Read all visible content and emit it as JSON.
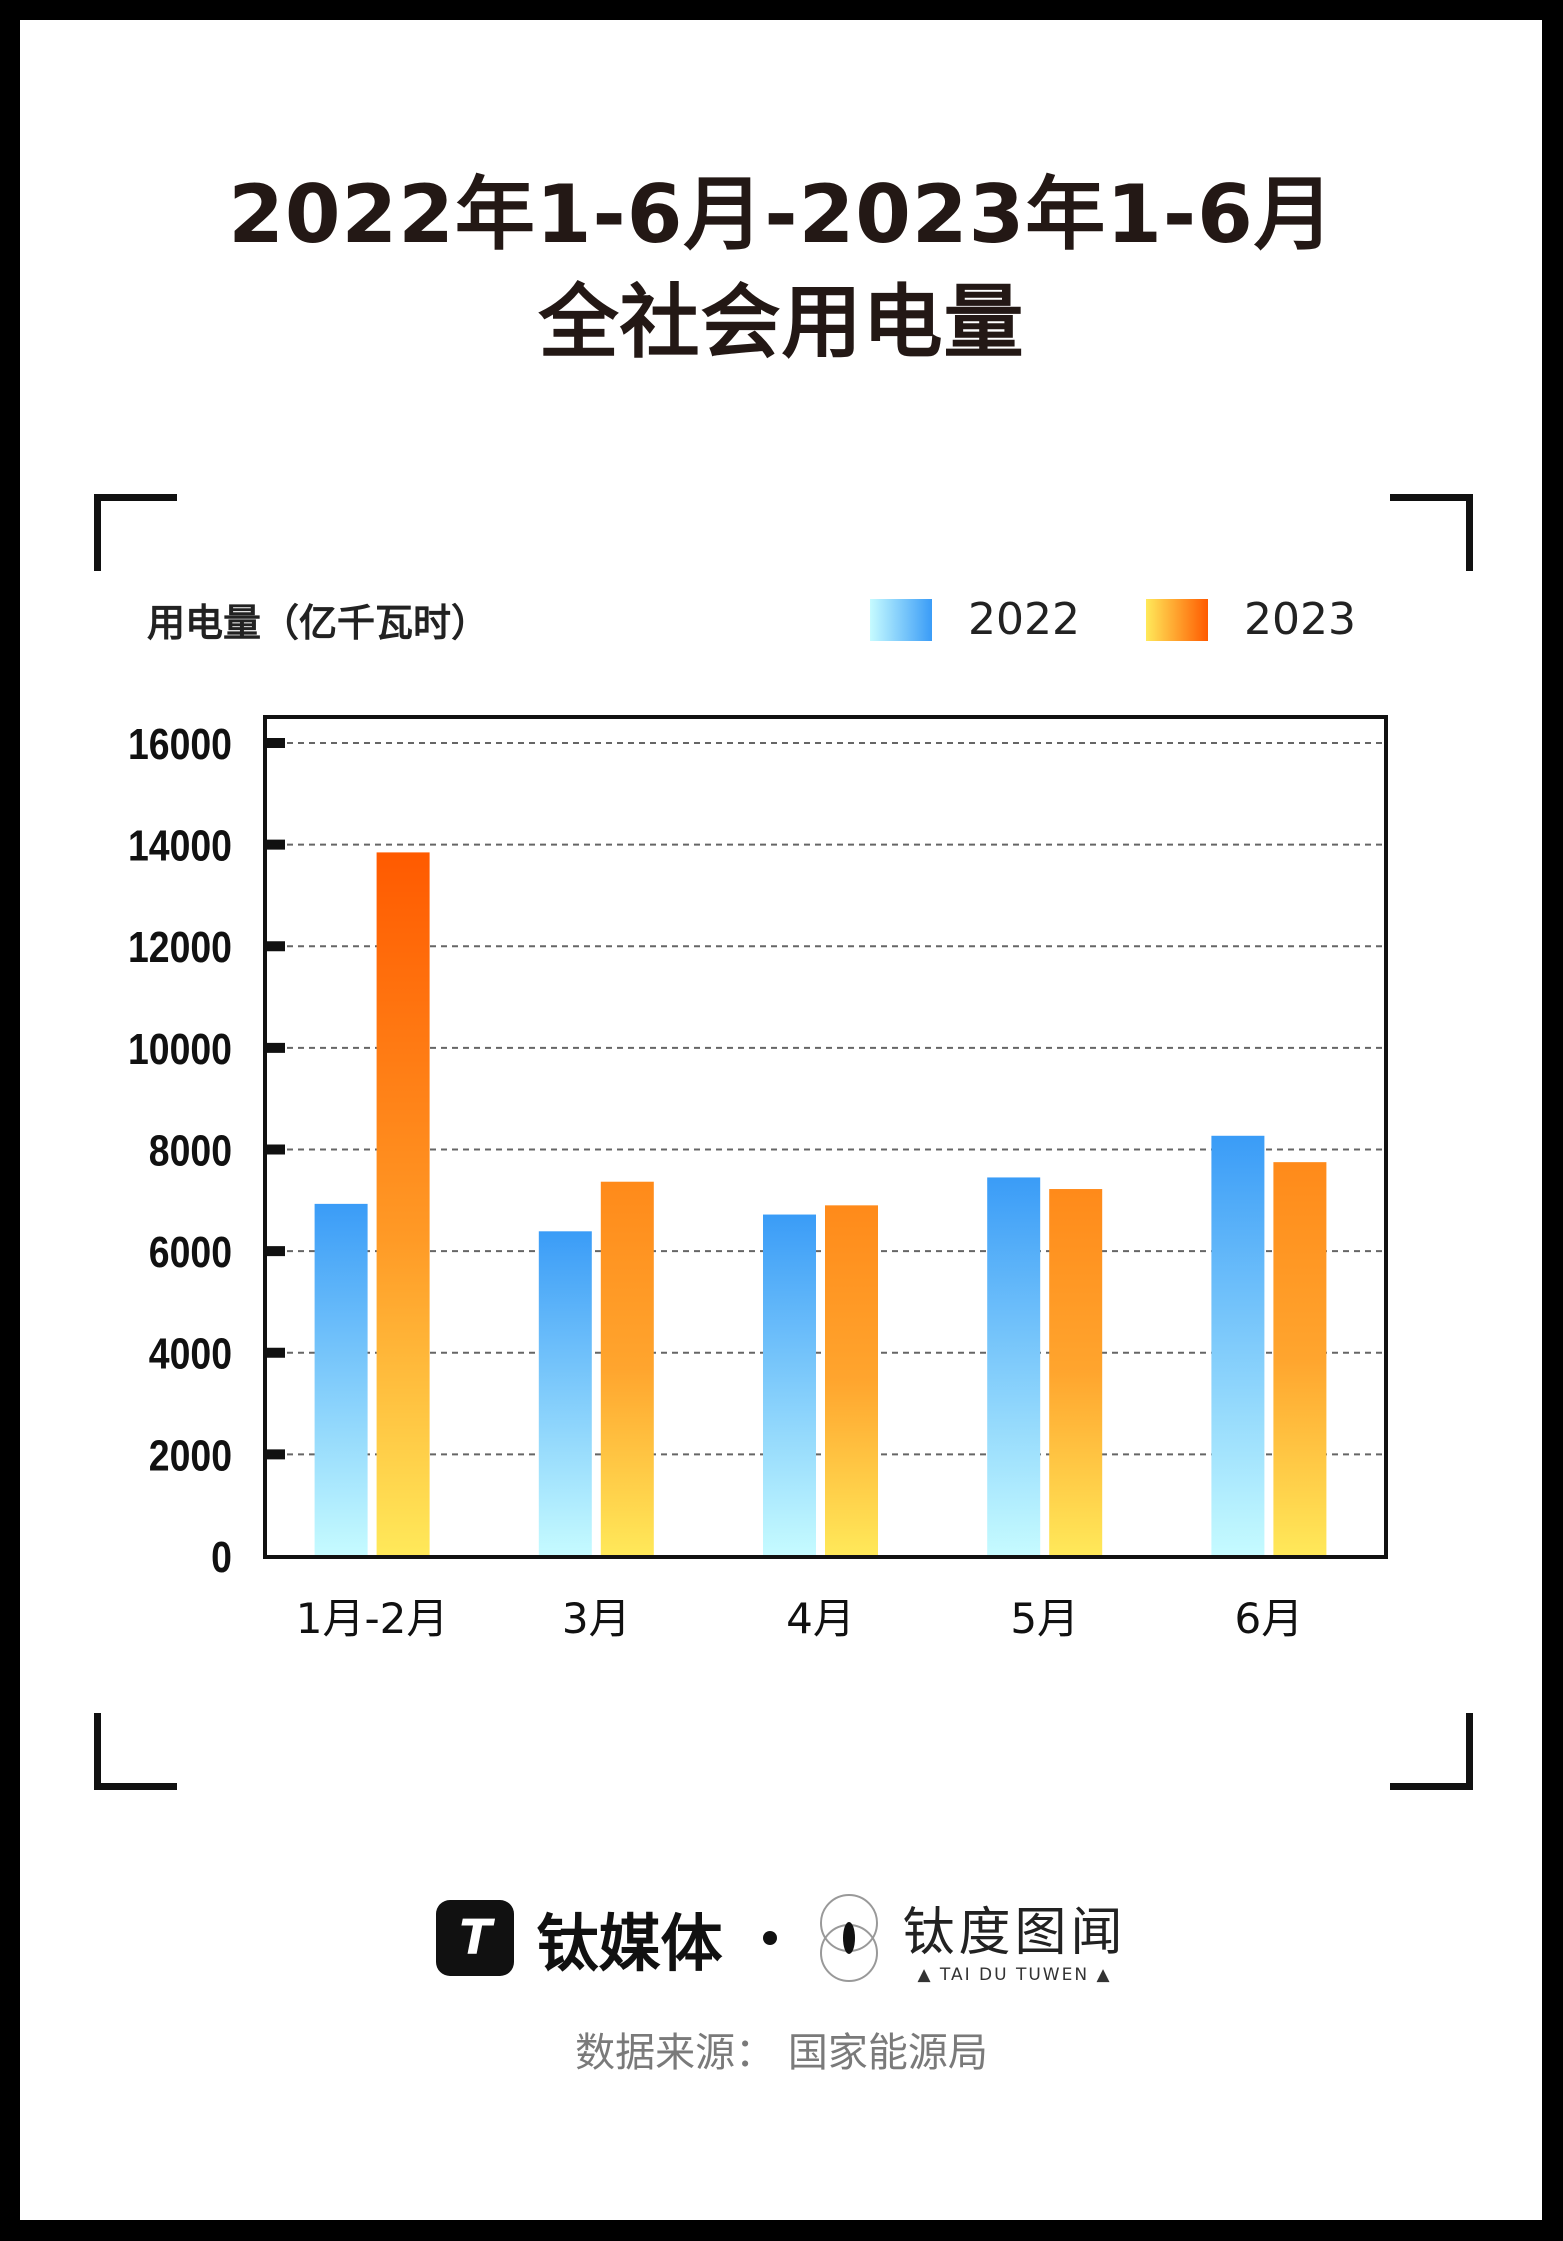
{
  "title_line1": "2022年1-6月-2023年1-6月",
  "title_line2": "全社会用电量",
  "footer": {
    "brand_logo_text": "T",
    "brand1": "钛媒体",
    "brand2_cn": "钛度图闻",
    "brand2_en": "▲ TAI DU TUWEN ▲",
    "source": "数据来源：  国家能源局"
  },
  "chart_data": {
    "type": "bar",
    "title": "2022年1-6月-2023年1-6月 全社会用电量",
    "ylabel": "用电量（亿千瓦时）",
    "xlabel": "",
    "categories": [
      "1月-2月",
      "3月",
      "4月",
      "5月",
      "6月"
    ],
    "series": [
      {
        "name": "2022",
        "values": [
          6930,
          6390,
          6720,
          7450,
          8270
        ],
        "color_top": "#3a9cf7",
        "color_bottom": "#c6fbff"
      },
      {
        "name": "2023",
        "values": [
          13847,
          7366,
          6901,
          7222,
          7751
        ],
        "color_top": "#ff5a00",
        "color_bottom": "#ffe95a"
      }
    ],
    "ylim": [
      0,
      16000
    ],
    "yticks": [
      "0",
      "2000",
      "4000",
      "6000",
      "8000",
      "10000",
      "12000",
      "14000",
      "16000"
    ],
    "grid": true,
    "legend_position": "top-right"
  }
}
